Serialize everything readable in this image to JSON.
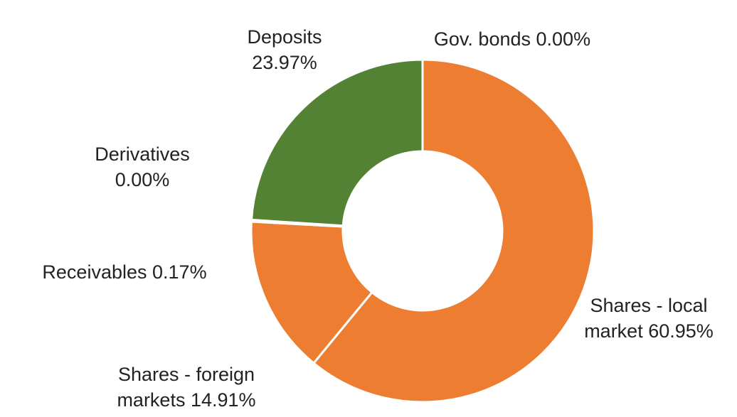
{
  "chart_data": {
    "type": "donut",
    "categories": [
      "Gov. bonds",
      "Shares - local market",
      "Shares - foreign markets",
      "Receivables",
      "Derivatives",
      "Deposits"
    ],
    "values": [
      0.0,
      60.95,
      14.91,
      0.17,
      0.0,
      23.97
    ],
    "value_labels": [
      "0.00%",
      "60.95%",
      "14.91%",
      "0.17%",
      "0.00%",
      "23.97%"
    ],
    "colors": [
      "#4472c4",
      "#ed7d31",
      "#ed7d31",
      "#a5a5a5",
      "#ffc000",
      "#548235"
    ]
  }
}
